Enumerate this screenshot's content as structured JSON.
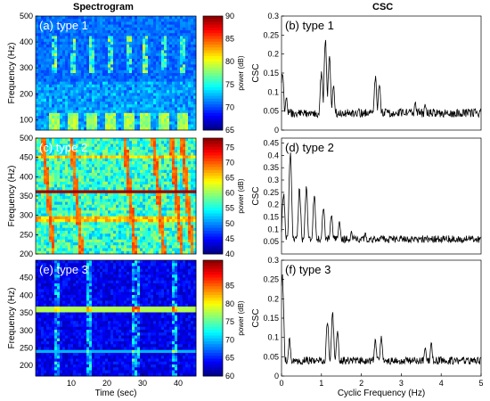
{
  "headers": {
    "left": "Spectrogram",
    "right": "CSC"
  },
  "chart_data": [
    {
      "type": "heatmap",
      "label": "(a) type 1",
      "xlim": [
        0,
        45
      ],
      "ylim": [
        60,
        500
      ],
      "yticks": [
        100,
        200,
        300,
        400,
        500
      ],
      "ylabel": "Frequency (Hz)",
      "colorbar": {
        "label": "power (dB)",
        "range": [
          65,
          90
        ],
        "ticks": [
          65,
          70,
          75,
          80,
          85,
          90
        ]
      },
      "events_sec": [
        5,
        10.5,
        15.5,
        21,
        26,
        31,
        36,
        41
      ]
    },
    {
      "type": "line",
      "label": "(b) type 1",
      "xlim": [
        0,
        5
      ],
      "ylim": [
        0,
        0.3
      ],
      "yticks": [
        0,
        0.05,
        0.1,
        0.15,
        0.2,
        0.25,
        0.3
      ],
      "ylabel": "CSC",
      "peaks": [
        {
          "x": 0.02,
          "y": 0.17
        },
        {
          "x": 0.12,
          "y": 0.09
        },
        {
          "x": 1.0,
          "y": 0.17
        },
        {
          "x": 1.1,
          "y": 0.25
        },
        {
          "x": 1.2,
          "y": 0.21
        },
        {
          "x": 1.3,
          "y": 0.12
        },
        {
          "x": 2.35,
          "y": 0.15
        },
        {
          "x": 2.45,
          "y": 0.13
        },
        {
          "x": 3.35,
          "y": 0.08
        },
        {
          "x": 3.6,
          "y": 0.07
        },
        {
          "x": 4.7,
          "y": 0.06
        }
      ],
      "baseline": 0.045
    },
    {
      "type": "heatmap",
      "label": "(c) type 2",
      "xlim": [
        0,
        45
      ],
      "ylim": [
        200,
        500
      ],
      "yticks": [
        200,
        250,
        300,
        350,
        400,
        450,
        500
      ],
      "ylabel": "Frequency (Hz)",
      "colorbar": {
        "label": "power (dB)",
        "range": [
          40,
          78
        ],
        "ticks": [
          40,
          45,
          50,
          55,
          60,
          65,
          70,
          75
        ]
      },
      "tonal_lines_hz": [
        360,
        290,
        450
      ],
      "chirps_sec": [
        2,
        10,
        25,
        33,
        38,
        41
      ]
    },
    {
      "type": "line",
      "label": "(d) type 2",
      "xlim": [
        0,
        5
      ],
      "ylim": [
        0,
        0.47
      ],
      "yticks": [
        0.05,
        0.1,
        0.15,
        0.2,
        0.25,
        0.3,
        0.35,
        0.4,
        0.45
      ],
      "ylabel": "CSC",
      "peaks": [
        {
          "x": 0.05,
          "y": 0.27
        },
        {
          "x": 0.22,
          "y": 0.43
        },
        {
          "x": 0.45,
          "y": 0.28
        },
        {
          "x": 0.62,
          "y": 0.29
        },
        {
          "x": 0.82,
          "y": 0.25
        },
        {
          "x": 1.05,
          "y": 0.2
        },
        {
          "x": 1.25,
          "y": 0.18
        },
        {
          "x": 1.45,
          "y": 0.14
        },
        {
          "x": 1.75,
          "y": 0.1
        },
        {
          "x": 2.1,
          "y": 0.09
        },
        {
          "x": 2.5,
          "y": 0.08
        }
      ],
      "baseline": 0.06
    },
    {
      "type": "heatmap",
      "label": "(e) type 3",
      "xlim": [
        0,
        45
      ],
      "ylim": [
        170,
        500
      ],
      "yticks": [
        200,
        250,
        300,
        350,
        400,
        450
      ],
      "ylabel": "Frequency (Hz)",
      "xticks": [
        10,
        20,
        30,
        40
      ],
      "xlabel": "Time (sec)",
      "colorbar": {
        "label": "power (dB)",
        "range": [
          60,
          92
        ],
        "ticks": [
          60,
          65,
          70,
          75,
          80,
          85
        ]
      },
      "tonal_lines_hz": [
        360,
        240
      ],
      "events_sec": [
        6,
        15,
        28,
        39
      ]
    },
    {
      "type": "line",
      "label": "(f) type 3",
      "xlim": [
        0,
        5
      ],
      "ylim": [
        0,
        0.3
      ],
      "yticks": [
        0,
        0.05,
        0.1,
        0.15,
        0.2,
        0.25,
        0.3
      ],
      "ylabel": "CSC",
      "xticks": [
        0,
        1,
        2,
        3,
        4,
        5
      ],
      "xlabel": "Cyclic Frequency (Hz)",
      "peaks": [
        {
          "x": 0.02,
          "y": 0.28
        },
        {
          "x": 0.2,
          "y": 0.1
        },
        {
          "x": 1.15,
          "y": 0.15
        },
        {
          "x": 1.28,
          "y": 0.17
        },
        {
          "x": 1.4,
          "y": 0.12
        },
        {
          "x": 2.35,
          "y": 0.1
        },
        {
          "x": 2.5,
          "y": 0.11
        },
        {
          "x": 3.6,
          "y": 0.08
        },
        {
          "x": 3.75,
          "y": 0.09
        }
      ],
      "baseline": 0.04
    }
  ]
}
